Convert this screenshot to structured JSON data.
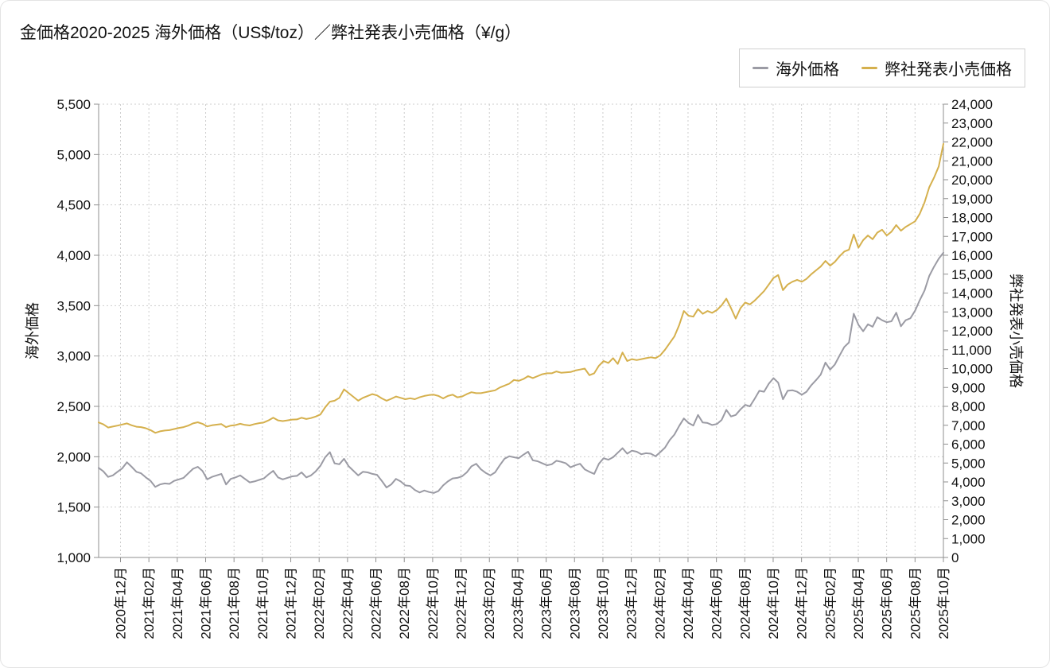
{
  "title": "金価格2020-2025 海外価格（US$/toz）／弊社発表小売価格（¥/g）",
  "legend": {
    "items": [
      {
        "label": "海外価格",
        "color": "#9b9ba4"
      },
      {
        "label": "弊社発表小売価格",
        "color": "#d5b04d"
      }
    ]
  },
  "chart_data": {
    "type": "line",
    "title": "金価格2020-2025 海外価格（US$/toz）／弊社発表小売価格（¥/g）",
    "grid": true,
    "legend_position": "top-right",
    "left_axis": {
      "label": "海外価格",
      "min": 1000,
      "max": 5500,
      "step": 500
    },
    "right_axis": {
      "label": "弊社発表小売価格",
      "min": 0,
      "max": 24000,
      "step": 1000
    },
    "x_axis": {
      "tick_labels": [
        "2020年12月",
        "2021年02月",
        "2021年04月",
        "2021年06月",
        "2021年08月",
        "2021年10月",
        "2021年12月",
        "2022年02月",
        "2022年04月",
        "2022年06月",
        "2022年08月",
        "2022年10月",
        "2022年12月",
        "2023年02月",
        "2023年04月",
        "2023年06月",
        "2023年08月",
        "2023年10月",
        "2023年12月",
        "2024年02月",
        "2024年04月",
        "2024年06月",
        "2024年08月",
        "2024年10月",
        "2024年12月",
        "2025年02月",
        "2025年04月",
        "2025年06月",
        "2025年08月",
        "2025年10月"
      ]
    },
    "series": [
      {
        "name": "海外価格",
        "axis": "left",
        "color": "#9b9ba4",
        "values": [
          1890,
          1855,
          1800,
          1815,
          1850,
          1885,
          1945,
          1900,
          1850,
          1835,
          1795,
          1760,
          1700,
          1725,
          1735,
          1730,
          1760,
          1775,
          1790,
          1835,
          1880,
          1900,
          1860,
          1775,
          1800,
          1815,
          1830,
          1725,
          1780,
          1795,
          1815,
          1780,
          1745,
          1755,
          1770,
          1785,
          1825,
          1860,
          1795,
          1775,
          1790,
          1805,
          1810,
          1845,
          1795,
          1815,
          1855,
          1910,
          1995,
          2045,
          1935,
          1925,
          1980,
          1905,
          1860,
          1815,
          1850,
          1845,
          1830,
          1820,
          1760,
          1695,
          1725,
          1780,
          1755,
          1715,
          1710,
          1670,
          1645,
          1665,
          1650,
          1640,
          1660,
          1715,
          1755,
          1785,
          1790,
          1805,
          1845,
          1905,
          1930,
          1875,
          1840,
          1815,
          1845,
          1915,
          1980,
          2005,
          1995,
          1985,
          2020,
          2050,
          1965,
          1955,
          1935,
          1915,
          1925,
          1960,
          1950,
          1935,
          1895,
          1915,
          1930,
          1875,
          1850,
          1830,
          1930,
          1985,
          1970,
          1995,
          2040,
          2085,
          2030,
          2060,
          2050,
          2025,
          2035,
          2030,
          2005,
          2045,
          2090,
          2165,
          2220,
          2305,
          2380,
          2335,
          2310,
          2415,
          2340,
          2335,
          2315,
          2325,
          2365,
          2465,
          2400,
          2415,
          2470,
          2515,
          2500,
          2575,
          2655,
          2645,
          2725,
          2780,
          2735,
          2570,
          2655,
          2660,
          2645,
          2615,
          2645,
          2710,
          2760,
          2815,
          2935,
          2865,
          2915,
          3005,
          3090,
          3135,
          3420,
          3310,
          3245,
          3315,
          3290,
          3385,
          3355,
          3335,
          3345,
          3430,
          3295,
          3355,
          3375,
          3450,
          3555,
          3650,
          3795,
          3885,
          3965,
          4025
        ]
      },
      {
        "name": "弊社発表小売価格",
        "axis": "right",
        "color": "#d5b04d",
        "values": [
          7150,
          7050,
          6880,
          6930,
          6980,
          7040,
          7100,
          7000,
          6920,
          6900,
          6840,
          6740,
          6600,
          6680,
          6720,
          6740,
          6800,
          6860,
          6900,
          6980,
          7100,
          7160,
          7080,
          6940,
          7000,
          7030,
          7060,
          6900,
          6980,
          7010,
          7080,
          7020,
          6990,
          7060,
          7110,
          7150,
          7260,
          7400,
          7260,
          7220,
          7260,
          7300,
          7310,
          7400,
          7330,
          7380,
          7460,
          7570,
          7950,
          8250,
          8300,
          8450,
          8900,
          8700,
          8500,
          8300,
          8450,
          8550,
          8650,
          8580,
          8420,
          8300,
          8400,
          8520,
          8450,
          8380,
          8430,
          8380,
          8480,
          8550,
          8600,
          8620,
          8550,
          8420,
          8550,
          8620,
          8480,
          8520,
          8650,
          8750,
          8700,
          8700,
          8750,
          8800,
          8850,
          9000,
          9100,
          9200,
          9400,
          9350,
          9450,
          9600,
          9500,
          9600,
          9700,
          9750,
          9750,
          9850,
          9780,
          9800,
          9820,
          9900,
          9950,
          10000,
          9650,
          9750,
          10150,
          10400,
          10300,
          10550,
          10250,
          10850,
          10400,
          10500,
          10450,
          10500,
          10550,
          10600,
          10550,
          10700,
          11000,
          11350,
          11700,
          12300,
          13050,
          12800,
          12750,
          13150,
          12900,
          13050,
          12950,
          13100,
          13350,
          13700,
          13200,
          12650,
          13200,
          13500,
          13400,
          13600,
          13850,
          14100,
          14450,
          14800,
          14950,
          14150,
          14450,
          14600,
          14700,
          14600,
          14750,
          15000,
          15200,
          15400,
          15700,
          15450,
          15650,
          15950,
          16200,
          16300,
          17100,
          16400,
          16800,
          17050,
          16850,
          17200,
          17350,
          17050,
          17250,
          17600,
          17300,
          17500,
          17650,
          17800,
          18200,
          18800,
          19600,
          20100,
          20700,
          21900
        ]
      }
    ],
    "style": {
      "grid_color": "#cdcdcd",
      "axis_color": "#8f8f8f",
      "text_color": "#111111"
    }
  }
}
